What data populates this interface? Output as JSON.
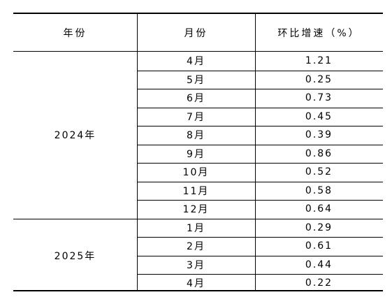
{
  "table": {
    "headers": {
      "year": "年份",
      "month": "月份",
      "mom": "环比增速（%）"
    },
    "groups": [
      {
        "year": "2024年",
        "rows": [
          {
            "month": "4月",
            "value": "1.21"
          },
          {
            "month": "5月",
            "value": "0.25"
          },
          {
            "month": "6月",
            "value": "0.73"
          },
          {
            "month": "7月",
            "value": "0.45"
          },
          {
            "month": "8月",
            "value": "0.39"
          },
          {
            "month": "9月",
            "value": "0.86"
          },
          {
            "month": "10月",
            "value": "0.52"
          },
          {
            "month": "11月",
            "value": "0.58"
          },
          {
            "month": "12月",
            "value": "0.64"
          }
        ]
      },
      {
        "year": "2025年",
        "rows": [
          {
            "month": "1月",
            "value": "0.29"
          },
          {
            "month": "2月",
            "value": "0.61"
          },
          {
            "month": "3月",
            "value": "0.44"
          },
          {
            "month": "4月",
            "value": "0.22"
          }
        ]
      }
    ]
  }
}
